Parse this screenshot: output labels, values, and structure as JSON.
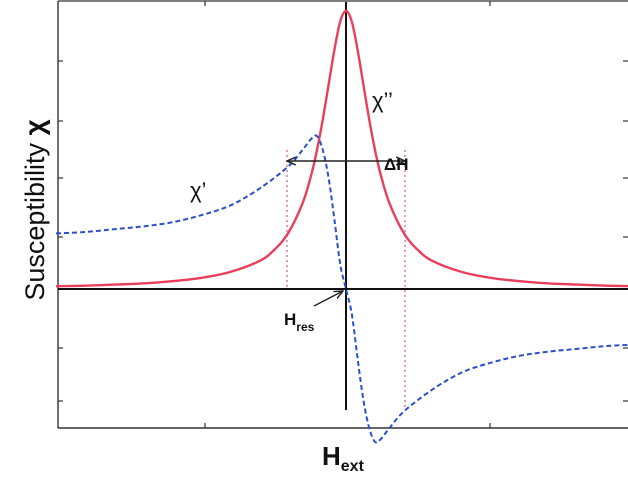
{
  "chart_data": {
    "type": "line",
    "title": "",
    "ylabel": "Susceptibility",
    "ylabel_symbol": "χ",
    "xlabel": "H",
    "xlabel_sub": "ext",
    "xlim": [
      -1,
      1
    ],
    "ylim": [
      -0.48,
      1.1
    ],
    "grid": false,
    "series": [
      {
        "name": "χ''",
        "label": "χ’’",
        "color": "#e8405a",
        "style": "solid",
        "kind": "absorption",
        "x": [
          -1,
          -0.9,
          -0.8,
          -0.7,
          -0.6,
          -0.5,
          -0.4,
          -0.3,
          -0.25,
          -0.2,
          -0.15,
          -0.12,
          -0.1,
          -0.08,
          -0.06,
          -0.04,
          -0.02,
          0,
          0.02,
          0.04,
          0.06,
          0.08,
          0.1,
          0.12,
          0.15,
          0.2,
          0.25,
          0.3,
          0.4,
          0.5,
          0.6,
          0.7,
          0.8,
          0.9,
          1
        ],
        "y": [
          0.01,
          0.012,
          0.016,
          0.02,
          0.028,
          0.04,
          0.061,
          0.1,
          0.138,
          0.2,
          0.308,
          0.41,
          0.5,
          0.61,
          0.735,
          0.86,
          0.962,
          1.0,
          0.962,
          0.86,
          0.735,
          0.61,
          0.5,
          0.41,
          0.308,
          0.2,
          0.138,
          0.1,
          0.061,
          0.04,
          0.028,
          0.02,
          0.016,
          0.012,
          0.01
        ]
      },
      {
        "name": "χ'",
        "label": "χ’",
        "color": "#2b50c8",
        "style": "dashed",
        "kind": "dispersion",
        "x": [
          -1,
          -0.9,
          -0.8,
          -0.7,
          -0.6,
          -0.5,
          -0.4,
          -0.3,
          -0.2,
          -0.15,
          -0.12,
          -0.1,
          -0.08,
          -0.06,
          -0.04,
          -0.02,
          0,
          0.02,
          0.04,
          0.06,
          0.08,
          0.1,
          0.12,
          0.15,
          0.2,
          0.3,
          0.4,
          0.5,
          0.6,
          0.7,
          0.8,
          0.9,
          1
        ],
        "y": [
          0.2,
          0.205,
          0.215,
          0.225,
          0.24,
          0.265,
          0.3,
          0.36,
          0.44,
          0.5,
          0.54,
          0.55,
          0.5,
          0.4,
          0.25,
          0.09,
          0,
          -0.09,
          -0.25,
          -0.4,
          -0.5,
          -0.55,
          -0.54,
          -0.5,
          -0.44,
          -0.36,
          -0.3,
          -0.265,
          -0.24,
          -0.225,
          -0.215,
          -0.205,
          -0.2
        ]
      }
    ],
    "annotations": [
      {
        "text": "ΔH",
        "kind": "linewidth"
      },
      {
        "text": "H",
        "sub": "res",
        "kind": "resonance"
      }
    ]
  }
}
